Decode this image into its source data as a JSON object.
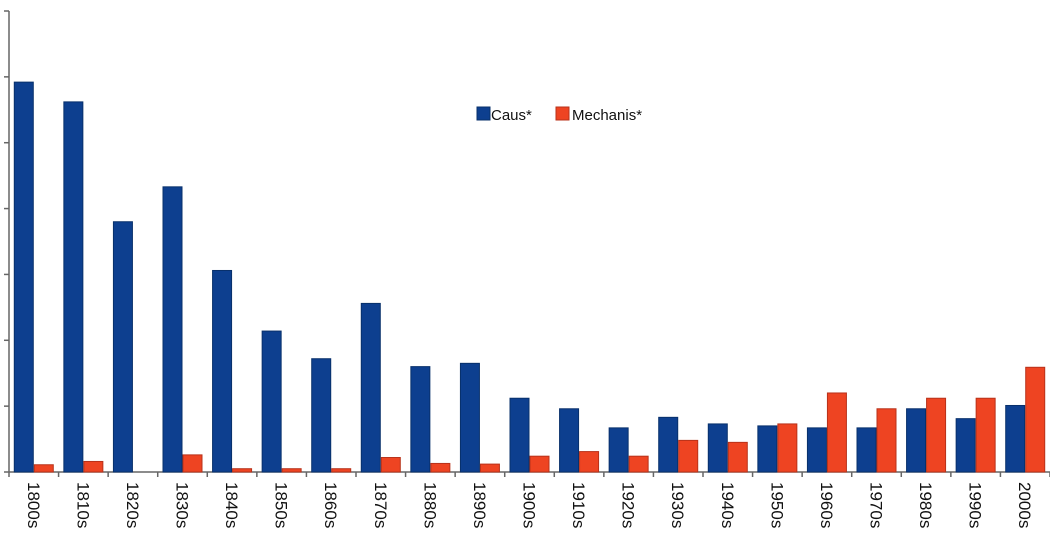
{
  "chart_data": {
    "type": "bar",
    "categories": [
      "1800s",
      "1810s",
      "1820s",
      "1830s",
      "1840s",
      "1850s",
      "1860s",
      "1870s",
      "1880s",
      "1890s",
      "1900s",
      "1910s",
      "1920s",
      "1930s",
      "1940s",
      "1950s",
      "1960s",
      "1970s",
      "1980s",
      "1990s",
      "2000s"
    ],
    "series": [
      {
        "name": "Caus*",
        "color": "#0d3f8f",
        "values": [
          59.2,
          56.2,
          38.0,
          43.3,
          30.6,
          21.4,
          17.2,
          25.6,
          16.0,
          16.5,
          11.2,
          9.6,
          6.7,
          8.3,
          7.3,
          7.0,
          6.7,
          6.7,
          9.6,
          8.1,
          10.1
        ]
      },
      {
        "name": "Mechanis*",
        "color": "#ee4422",
        "values": [
          1.1,
          1.6,
          0.0,
          2.6,
          0.5,
          0.5,
          0.5,
          2.2,
          1.3,
          1.2,
          2.4,
          3.1,
          2.4,
          4.8,
          4.5,
          7.3,
          12.0,
          9.6,
          11.2,
          11.2,
          15.9
        ]
      }
    ],
    "ylim": [
      0,
      70
    ],
    "yticks": [
      0,
      10,
      20,
      30,
      40,
      50,
      60,
      70
    ],
    "ytick_labels_visible": false,
    "legend_position": "top-center",
    "grid": false
  }
}
